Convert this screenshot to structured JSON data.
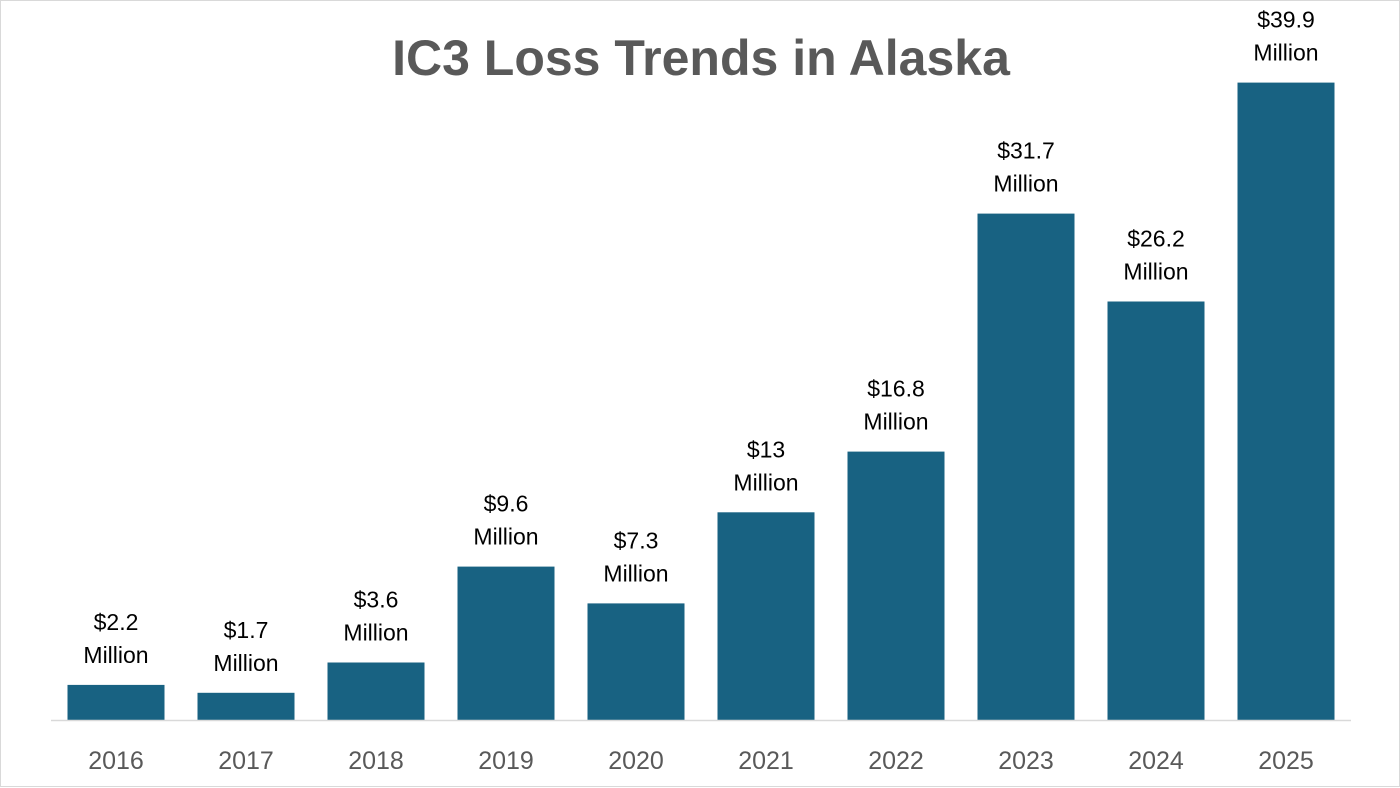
{
  "chart_data": {
    "type": "bar",
    "title": "IC3 Loss Trends in Alaska",
    "xlabel": "",
    "ylabel": "",
    "categories": [
      "2016",
      "2017",
      "2018",
      "2019",
      "2020",
      "2021",
      "2022",
      "2023",
      "2024",
      "2025"
    ],
    "values": [
      2.2,
      1.7,
      3.6,
      9.6,
      7.3,
      13,
      16.8,
      31.7,
      26.2,
      39.9
    ],
    "data_labels": [
      [
        "$2.2",
        "Million"
      ],
      [
        "$1.7",
        "Million"
      ],
      [
        "$3.6",
        "Million"
      ],
      [
        "$9.6",
        "Million"
      ],
      [
        "$7.3",
        "Million"
      ],
      [
        "$13",
        "Million"
      ],
      [
        "$16.8",
        "Million"
      ],
      [
        "$31.7",
        "Million"
      ],
      [
        "$26.2",
        "Million"
      ],
      [
        "$39.9",
        "Million"
      ]
    ],
    "ylim": [
      0,
      40
    ],
    "grid": false,
    "legend": "none",
    "bar_color": "#186282"
  }
}
